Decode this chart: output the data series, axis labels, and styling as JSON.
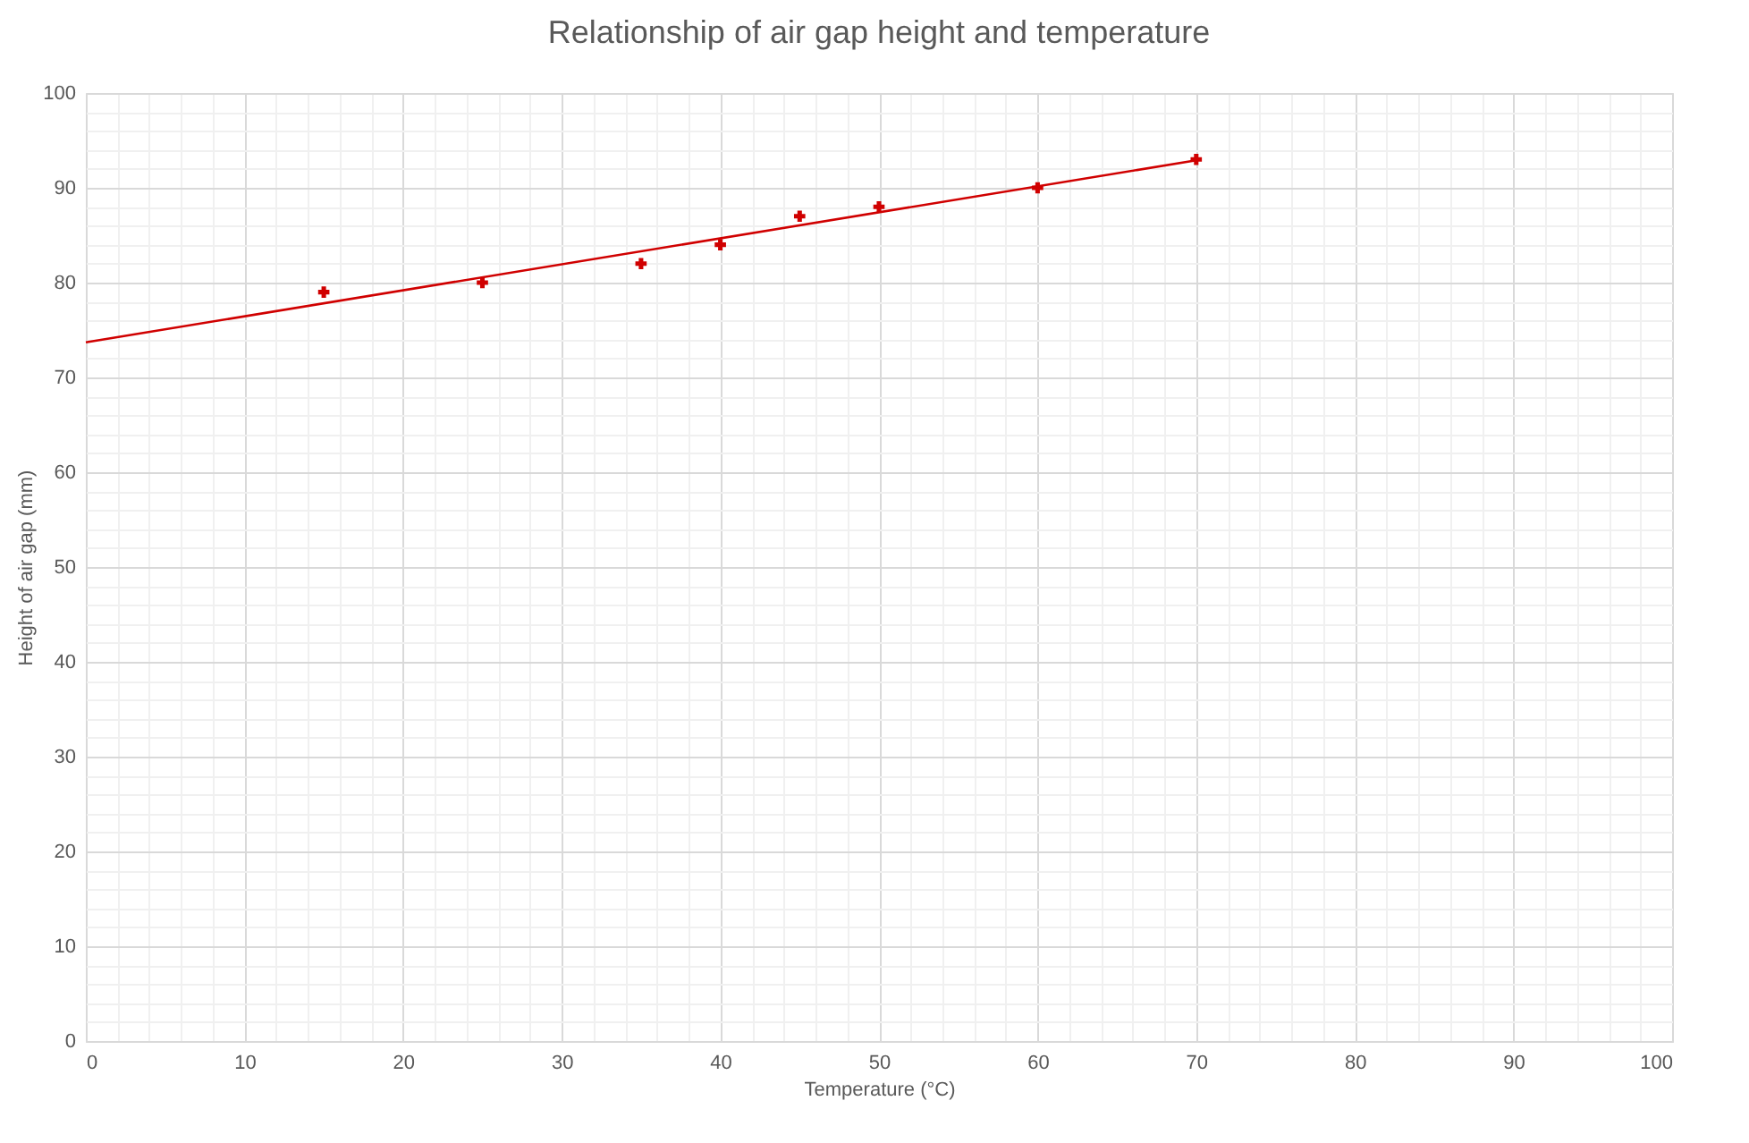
{
  "chart_data": {
    "type": "scatter",
    "title": "Relationship of air gap height and temperature",
    "xlabel": "Temperature  (°C)",
    "ylabel": "Height of air gap (mm)",
    "x": [
      15,
      25,
      35,
      40,
      45,
      50,
      60,
      70
    ],
    "series": [
      {
        "type": "scatter",
        "color": "#d00000",
        "marker": "cross",
        "values": [
          79,
          80,
          82,
          84,
          87,
          88,
          90,
          93
        ]
      },
      {
        "type": "line",
        "color": "#d00000",
        "x": [
          0,
          70
        ],
        "values": [
          73.7,
          92.9
        ],
        "line_style": "solid",
        "marker": "none"
      }
    ],
    "xlim": [
      0,
      100
    ],
    "ylim": [
      0,
      100
    ],
    "xticks": [
      0,
      {
        "value": 2,
        "label": null
      },
      {
        "value": 4,
        "label": null
      },
      {
        "value": 6,
        "label": null
      },
      {
        "value": 8,
        "label": null
      },
      10,
      {
        "value": 12,
        "label": null
      },
      {
        "value": 14,
        "label": null
      },
      {
        "value": 16,
        "label": null
      },
      {
        "value": 18,
        "label": null
      },
      20,
      {
        "value": 22,
        "label": null
      },
      {
        "value": 24,
        "label": null
      },
      {
        "value": 26,
        "label": null
      },
      {
        "value": 28,
        "label": null
      },
      30,
      {
        "value": 32,
        "label": null
      },
      {
        "value": 34,
        "label": null
      },
      {
        "value": 36,
        "label": null
      },
      {
        "value": 38,
        "label": null
      },
      40,
      {
        "value": 42,
        "label": null
      },
      {
        "value": 44,
        "label": null
      },
      {
        "value": 46,
        "label": null
      },
      {
        "value": 48,
        "label": null
      },
      50,
      {
        "value": 52,
        "label": null
      },
      {
        "value": 54,
        "label": null
      },
      {
        "value": 56,
        "label": null
      },
      {
        "value": 58,
        "label": null
      },
      60,
      {
        "value": 62,
        "label": null
      },
      {
        "value": 64,
        "label": null
      },
      {
        "value": 66,
        "label": null
      },
      {
        "value": 68,
        "label": null
      },
      70,
      {
        "value": 72,
        "label": null
      },
      {
        "value": 74,
        "label": null
      },
      {
        "value": 76,
        "label": null
      },
      {
        "value": 78,
        "label": null
      },
      80,
      {
        "value": 82,
        "label": null
      },
      {
        "value": 84,
        "label": null
      },
      {
        "value": 86,
        "label": null
      },
      {
        "value": 88,
        "label": null
      },
      90,
      {
        "value": 92,
        "label": null
      },
      {
        "value": 94,
        "label": null
      },
      {
        "value": 96,
        "label": null
      },
      {
        "value": 98,
        "label": null
      },
      100
    ],
    "yticks": [
      0,
      {
        "value": 2,
        "label": null
      },
      {
        "value": 4,
        "label": null
      },
      {
        "value": 6,
        "label": null
      },
      {
        "value": 8,
        "label": null
      },
      10,
      {
        "value": 12,
        "label": null
      },
      {
        "value": 14,
        "label": null
      },
      {
        "value": 16,
        "label": null
      },
      {
        "value": 18,
        "label": null
      },
      20,
      {
        "value": 22,
        "label": null
      },
      {
        "value": 24,
        "label": null
      },
      {
        "value": 26,
        "label": null
      },
      {
        "value": 28,
        "label": null
      },
      30,
      {
        "value": 32,
        "label": null
      },
      {
        "value": 34,
        "label": null
      },
      {
        "value": 36,
        "label": null
      },
      {
        "value": 38,
        "label": null
      },
      40,
      {
        "value": 42,
        "label": null
      },
      {
        "value": 44,
        "label": null
      },
      {
        "value": 46,
        "label": null
      },
      {
        "value": 48,
        "label": null
      },
      50,
      {
        "value": 52,
        "label": null
      },
      {
        "value": 54,
        "label": null
      },
      {
        "value": 56,
        "label": null
      },
      {
        "value": 58,
        "label": null
      },
      60,
      {
        "value": 62,
        "label": null
      },
      {
        "value": 64,
        "label": null
      },
      {
        "value": 66,
        "label": null
      },
      {
        "value": 68,
        "label": null
      },
      70,
      {
        "value": 72,
        "label": null
      },
      {
        "value": 74,
        "label": null
      },
      {
        "value": 76,
        "label": null
      },
      {
        "value": 78,
        "label": null
      },
      80,
      {
        "value": 82,
        "label": null
      },
      {
        "value": 84,
        "label": null
      },
      {
        "value": 86,
        "label": null
      },
      {
        "value": 88,
        "label": null
      },
      90,
      {
        "value": 92,
        "label": null
      },
      {
        "value": 94,
        "label": null
      },
      {
        "value": 96,
        "label": null
      },
      {
        "value": 98,
        "label": null
      },
      100
    ],
    "grid": true
  }
}
